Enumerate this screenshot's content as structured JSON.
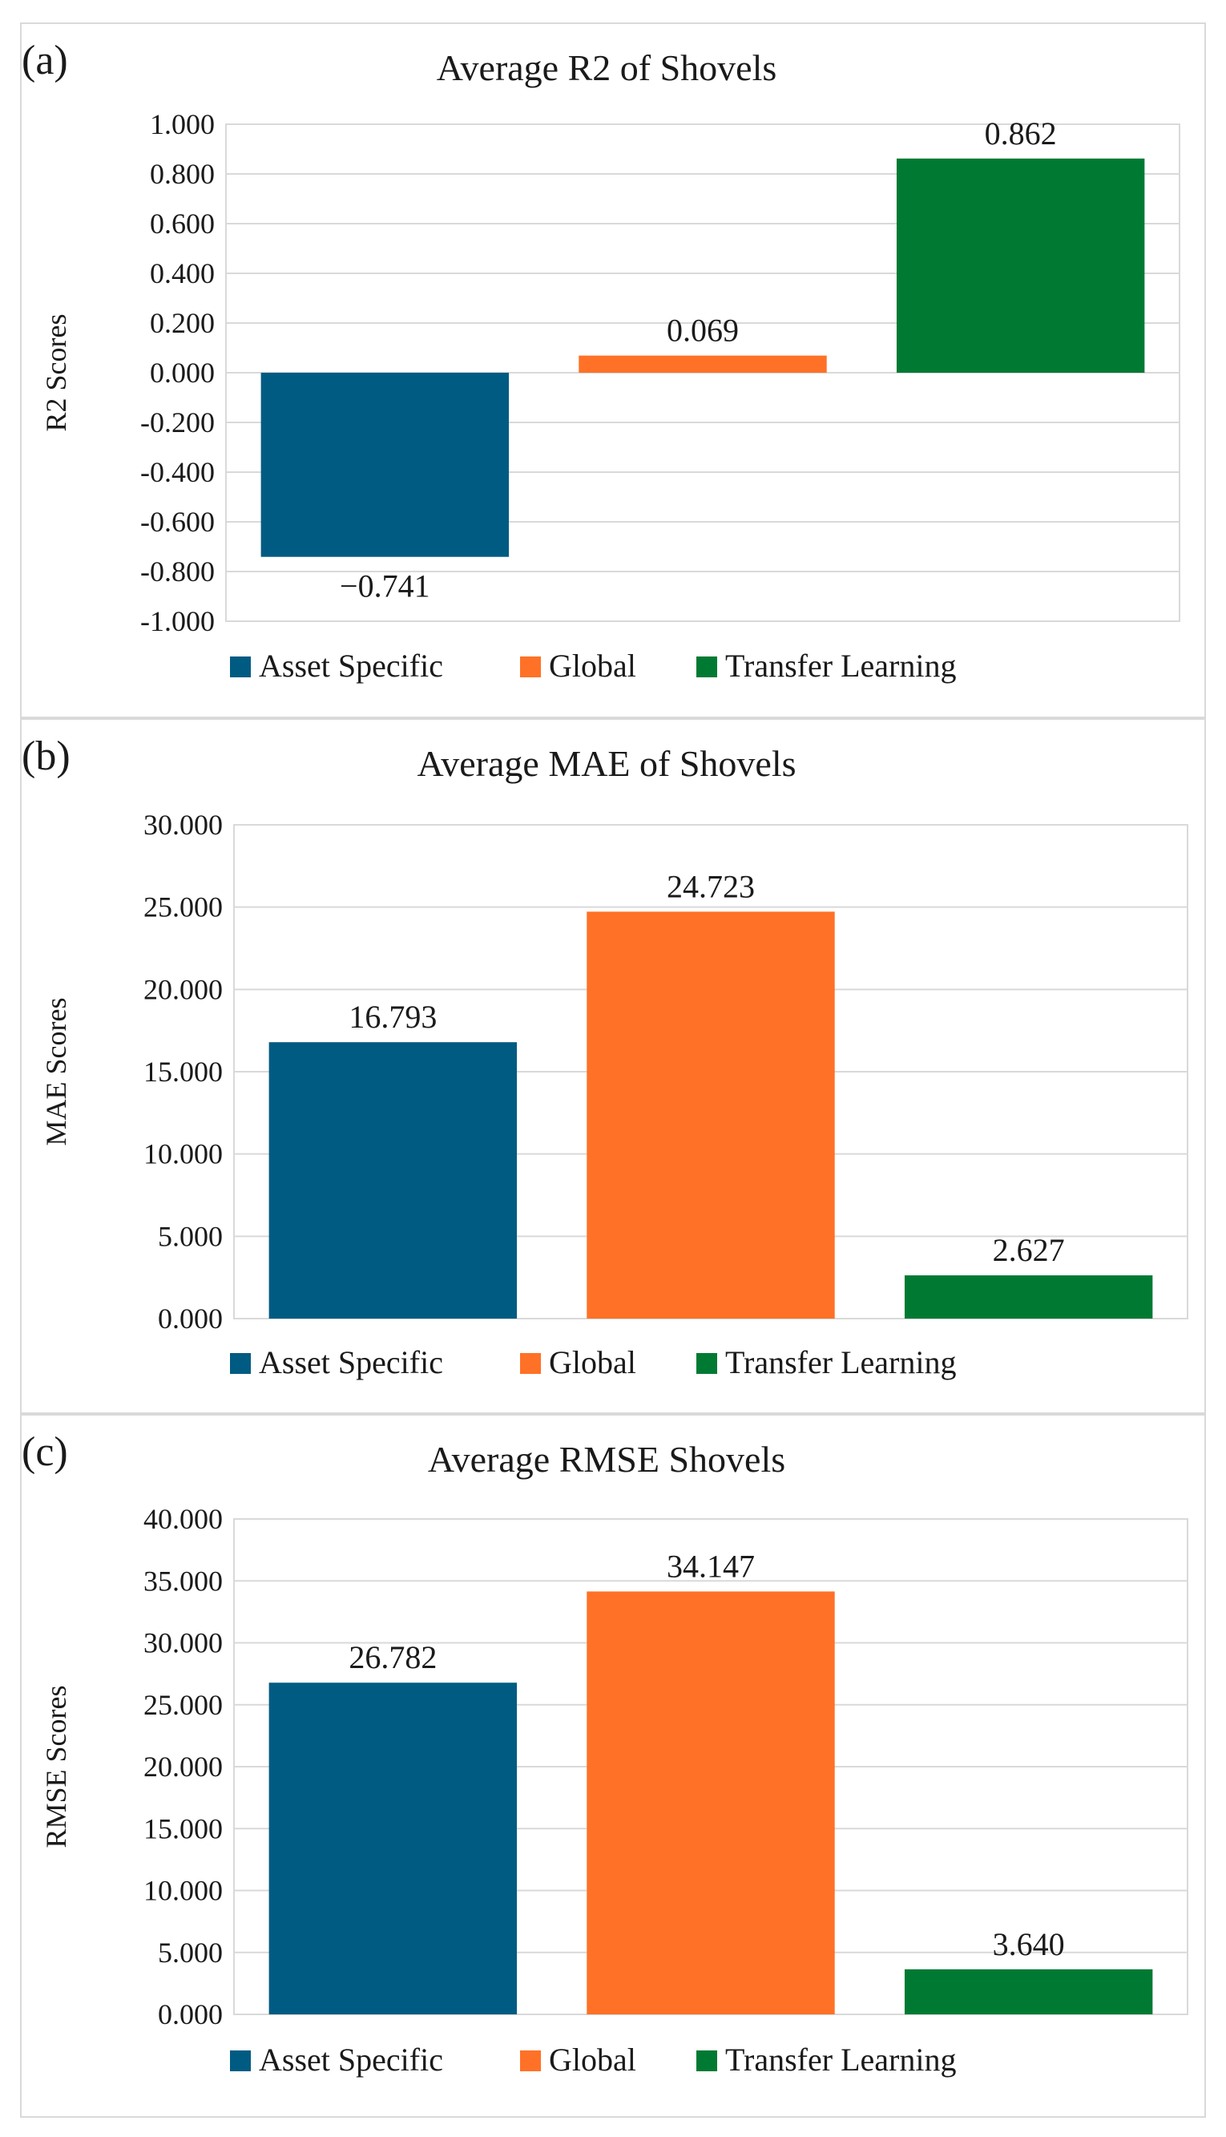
{
  "colors": {
    "asset_specific": "#005b82",
    "global": "#ff7126",
    "transfer_learning": "#007a33",
    "grid": "#d9d9d9"
  },
  "chart_data": [
    {
      "type": "bar",
      "panel_label": "(a)",
      "title": "Average R2 of Shovels",
      "xlabel": "",
      "ylabel": "R2 Scores",
      "series": [
        {
          "name": "Asset Specific",
          "values": [
            -0.741
          ]
        },
        {
          "name": "Global",
          "values": [
            0.069
          ]
        },
        {
          "name": "Transfer Learning",
          "values": [
            0.862
          ]
        }
      ],
      "data_labels": [
        "−0.741",
        "0.069",
        "0.862"
      ],
      "ylim": [
        -1.0,
        1.0
      ],
      "yticks": [
        1.0,
        0.8,
        0.6,
        0.4,
        0.2,
        0.0,
        -0.2,
        -0.4,
        -0.6,
        -0.8,
        -1.0
      ],
      "ytick_labels": [
        "1.000",
        "0.800",
        "0.600",
        "0.400",
        "0.200",
        "0.000",
        "-0.200",
        "-0.400",
        "-0.600",
        "-0.800",
        "-1.000"
      ],
      "grid": true,
      "legend": "bottom"
    },
    {
      "type": "bar",
      "panel_label": "(b)",
      "title": "Average MAE of Shovels",
      "xlabel": "",
      "ylabel": "MAE Scores",
      "series": [
        {
          "name": "Asset Specific",
          "values": [
            16.793
          ]
        },
        {
          "name": "Global",
          "values": [
            24.723
          ]
        },
        {
          "name": "Transfer Learning",
          "values": [
            2.627
          ]
        }
      ],
      "data_labels": [
        "16.793",
        "24.723",
        "2.627"
      ],
      "ylim": [
        0,
        30
      ],
      "yticks": [
        30,
        25,
        20,
        15,
        10,
        5,
        0
      ],
      "ytick_labels": [
        "30.000",
        "25.000",
        "20.000",
        "15.000",
        "10.000",
        "5.000",
        "0.000"
      ],
      "grid": true,
      "legend": "bottom"
    },
    {
      "type": "bar",
      "panel_label": "(c)",
      "title": "Average RMSE Shovels",
      "xlabel": "",
      "ylabel": "RMSE Scores",
      "series": [
        {
          "name": "Asset Specific",
          "values": [
            26.782
          ]
        },
        {
          "name": "Global",
          "values": [
            34.147
          ]
        },
        {
          "name": "Transfer Learning",
          "values": [
            3.64
          ]
        }
      ],
      "data_labels": [
        "26.782",
        "34.147",
        "3.640"
      ],
      "ylim": [
        0,
        40
      ],
      "yticks": [
        40,
        35,
        30,
        25,
        20,
        15,
        10,
        5,
        0
      ],
      "ytick_labels": [
        "40.000",
        "35.000",
        "30.000",
        "25.000",
        "20.000",
        "15.000",
        "10.000",
        "5.000",
        "0.000"
      ],
      "grid": true,
      "legend": "bottom"
    }
  ]
}
